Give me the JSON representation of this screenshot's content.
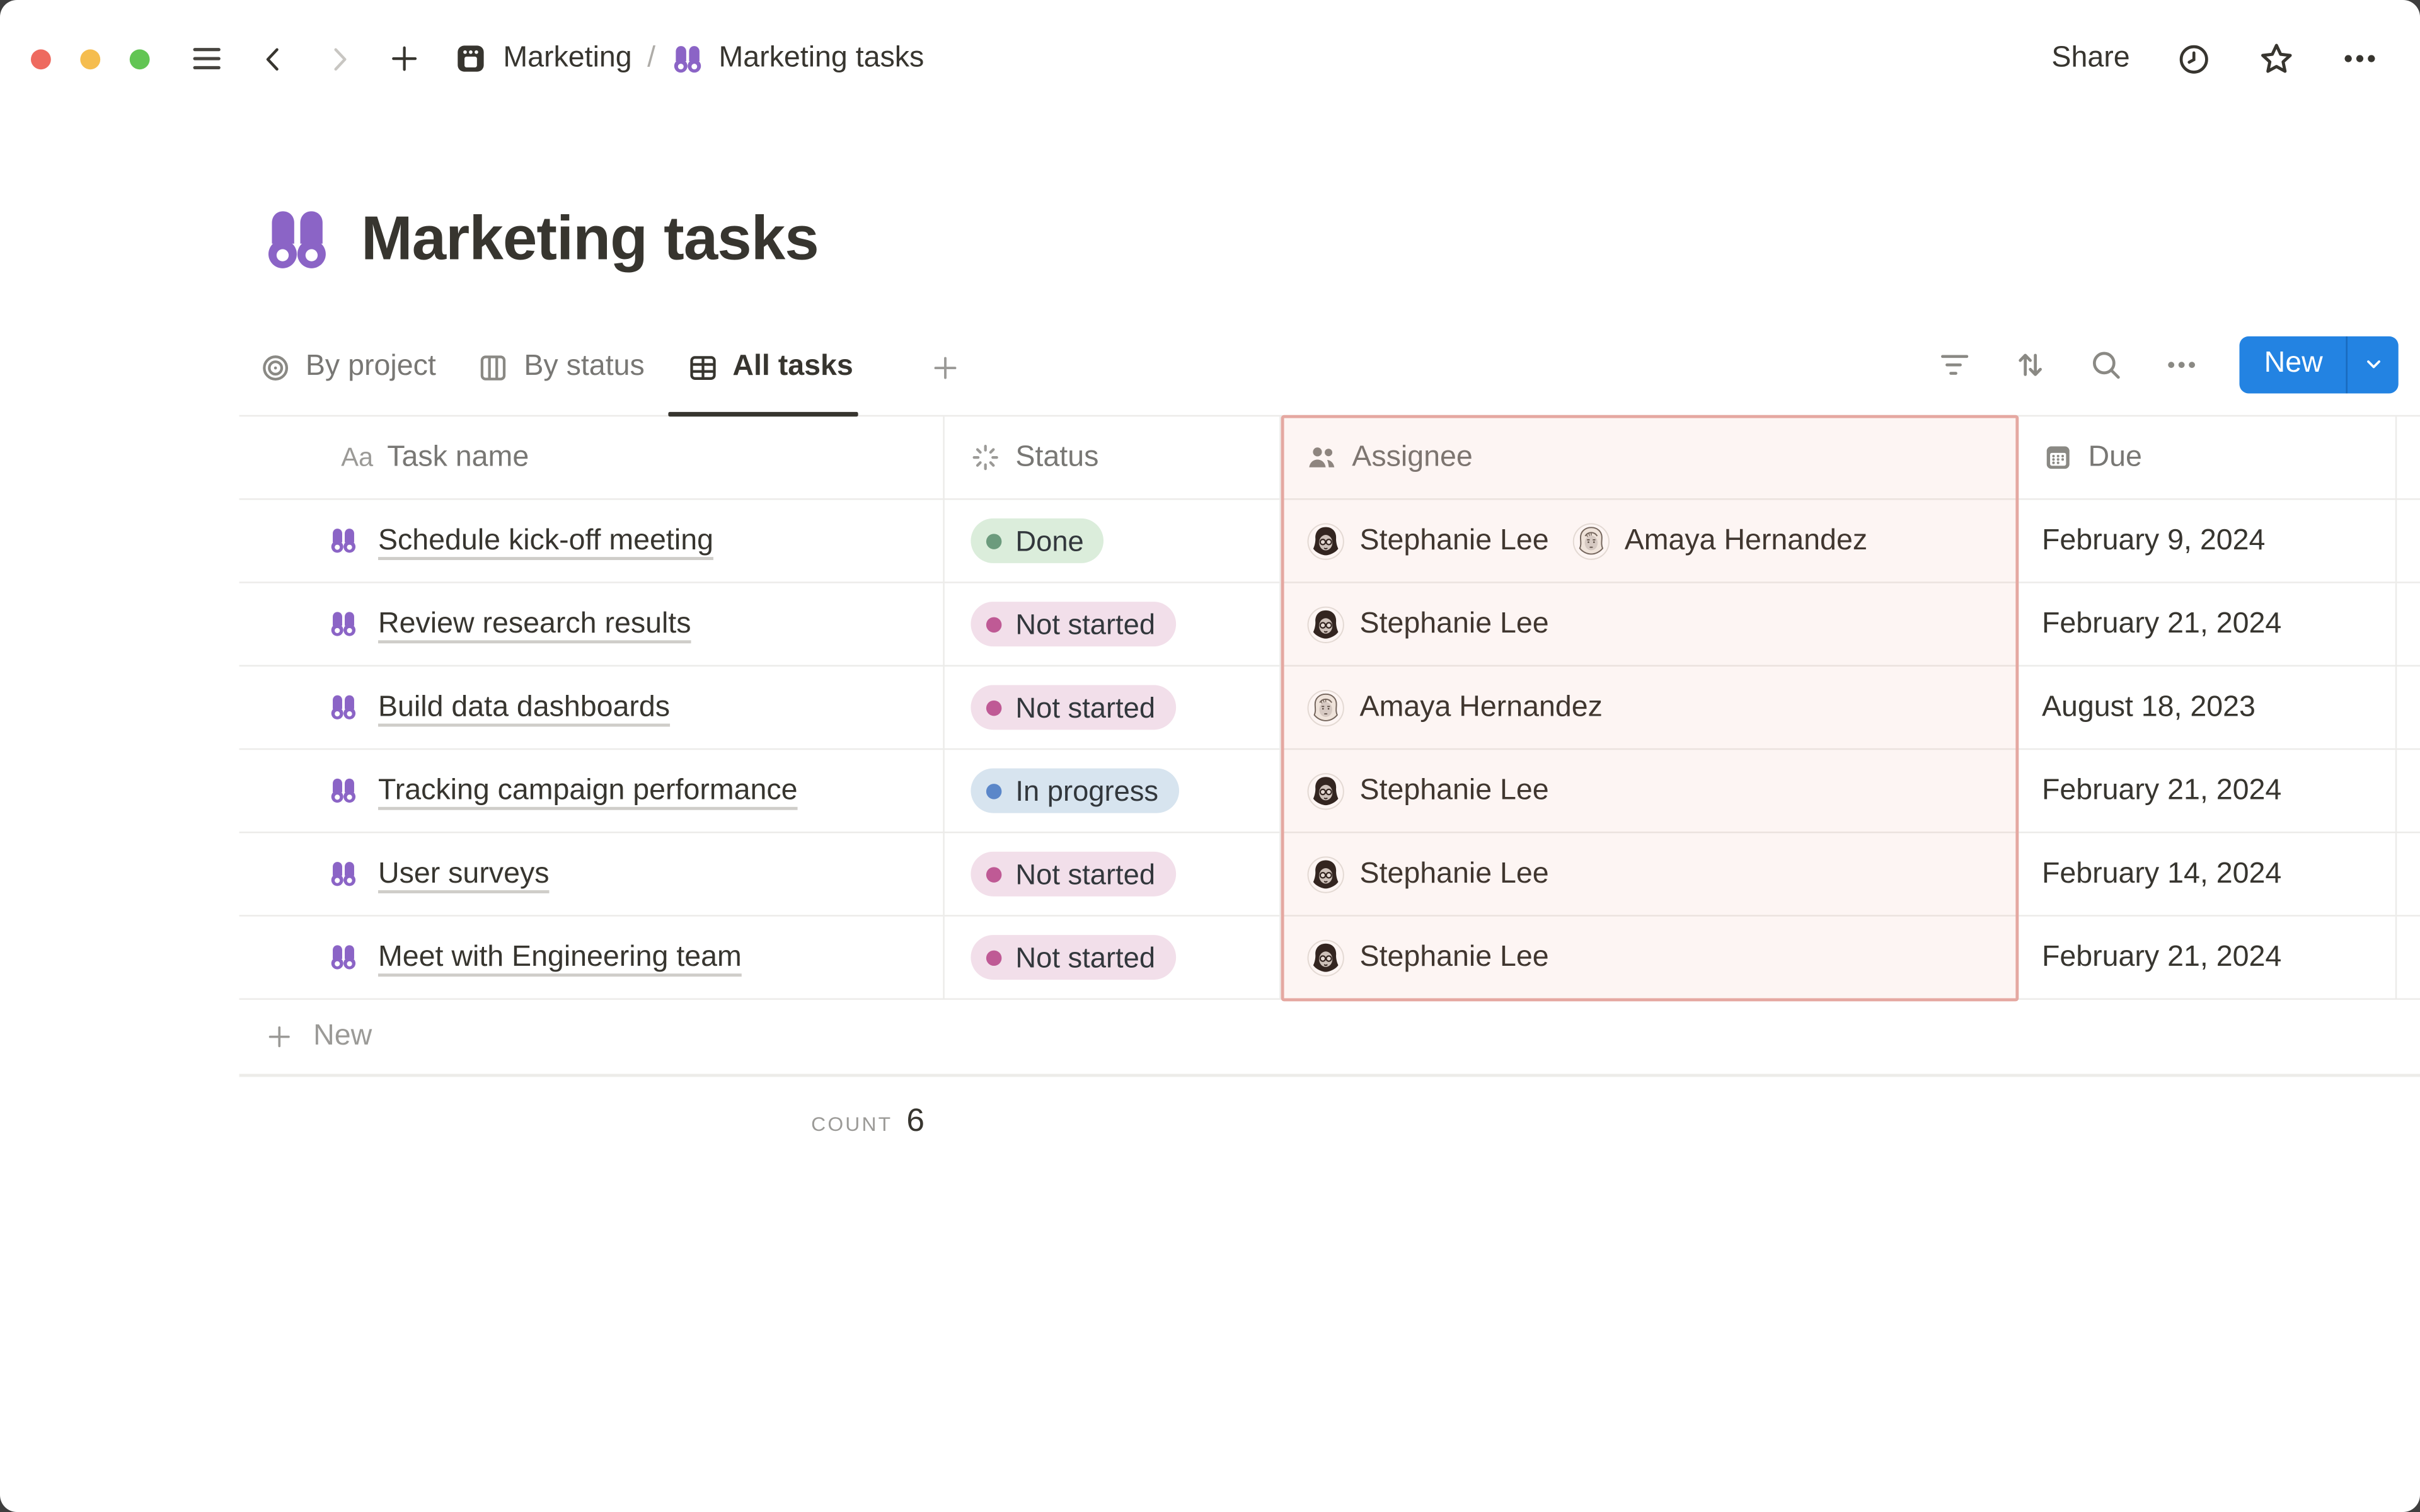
{
  "topbar": {
    "breadcrumb": [
      {
        "label": "Marketing",
        "icon": "database-icon"
      },
      {
        "label": "Marketing tasks",
        "icon": "binoculars-icon"
      }
    ],
    "separator": "/",
    "share_label": "Share"
  },
  "page": {
    "title": "Marketing tasks",
    "icon": "binoculars-icon"
  },
  "views": {
    "tabs": [
      {
        "label": "By project",
        "icon": "target-icon",
        "active": false
      },
      {
        "label": "By status",
        "icon": "board-icon",
        "active": false
      },
      {
        "label": "All tasks",
        "icon": "table-icon",
        "active": true
      }
    ],
    "new_button_label": "New"
  },
  "table": {
    "columns": [
      {
        "label": "Task name",
        "icon": "text-icon"
      },
      {
        "label": "Status",
        "icon": "status-burst-icon"
      },
      {
        "label": "Assignee",
        "icon": "people-icon",
        "highlighted": true
      },
      {
        "label": "Due",
        "icon": "calendar-icon"
      }
    ],
    "rows": [
      {
        "task": "Schedule kick-off meeting",
        "status": "Done",
        "status_color": "green",
        "assignees": [
          "Stephanie Lee",
          "Amaya Hernandez"
        ],
        "due": "February 9, 2024"
      },
      {
        "task": "Review research results",
        "status": "Not started",
        "status_color": "pink",
        "assignees": [
          "Stephanie Lee"
        ],
        "due": "February 21, 2024"
      },
      {
        "task": "Build data dashboards",
        "status": "Not started",
        "status_color": "pink",
        "assignees": [
          "Amaya Hernandez"
        ],
        "due": "August 18, 2023"
      },
      {
        "task": "Tracking campaign performance",
        "status": "In progress",
        "status_color": "blue",
        "assignees": [
          "Stephanie Lee"
        ],
        "due": "February 21, 2024"
      },
      {
        "task": "User surveys",
        "status": "Not started",
        "status_color": "pink",
        "assignees": [
          "Stephanie Lee"
        ],
        "due": "February 14, 2024"
      },
      {
        "task": "Meet with Engineering team",
        "status": "Not started",
        "status_color": "pink",
        "assignees": [
          "Stephanie Lee"
        ],
        "due": "February 21, 2024"
      }
    ],
    "new_row_label": "New",
    "footer": {
      "count_label": "COUNT",
      "count_value": "6"
    }
  },
  "status_colors": {
    "green": {
      "bg": "#dbeddb",
      "dot": "#6c9b7d"
    },
    "pink": {
      "bg": "#f2dfea",
      "dot": "#bf5a95"
    },
    "blue": {
      "bg": "#d7e4ef",
      "dot": "#5b87c9"
    }
  },
  "colors": {
    "accent_blue": "#2383e2",
    "icon_purple": "#8b64c6",
    "highlight_border": "#e5a8a1",
    "traffic_red": "#ee6a5f",
    "traffic_yellow": "#f5bd4f",
    "traffic_green": "#62c554"
  }
}
